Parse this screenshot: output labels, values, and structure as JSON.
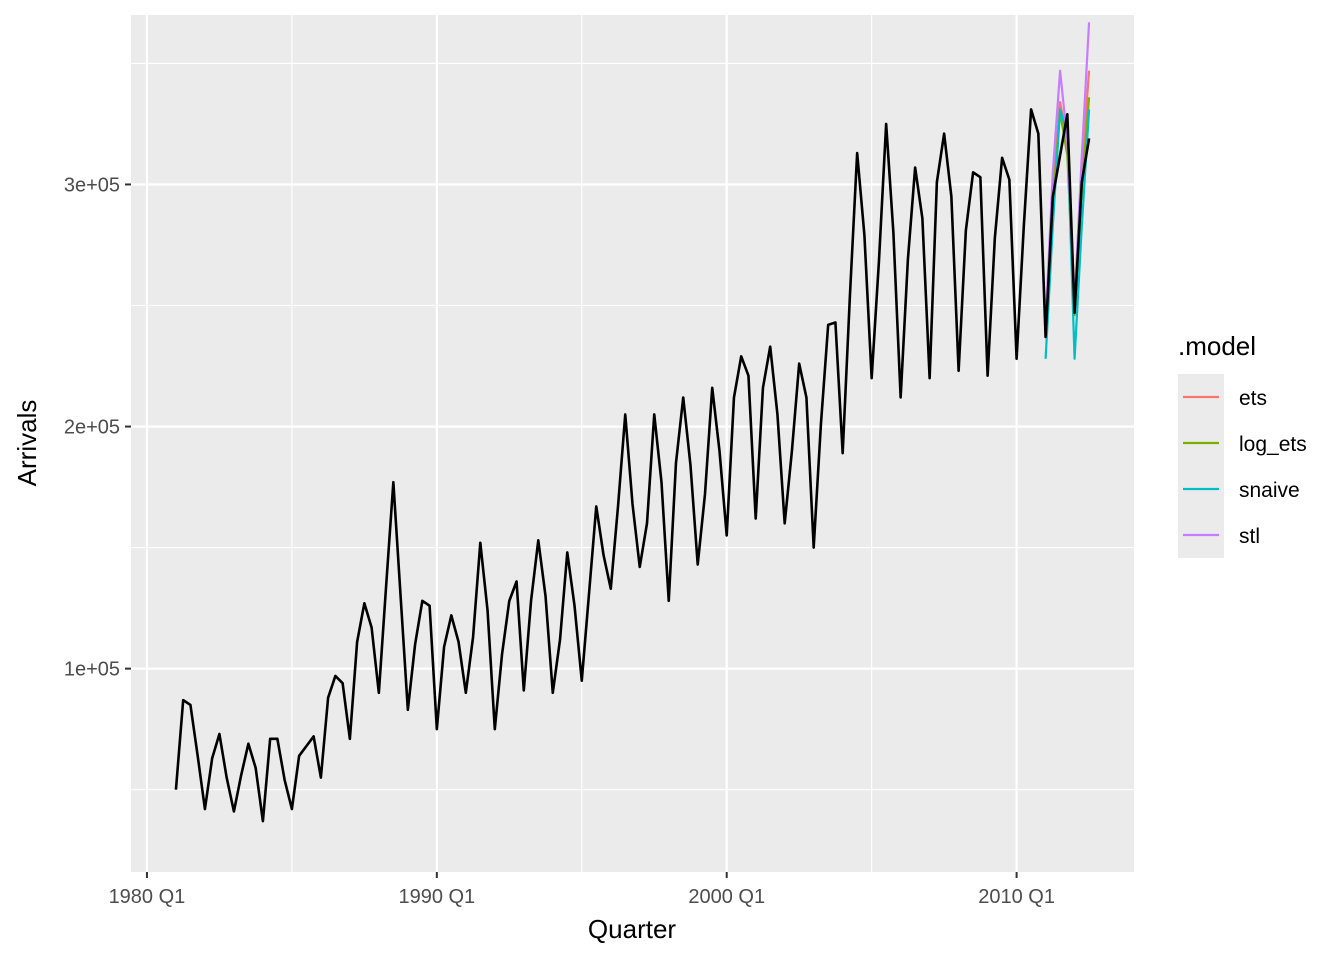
{
  "chart_data": {
    "type": "line",
    "title": "",
    "xlabel": "Quarter",
    "ylabel": "Arrivals",
    "x_start": "1981 Q1",
    "x_ticks": [
      {
        "label": "1980 Q1",
        "value": 1980.0
      },
      {
        "label": "1990 Q1",
        "value": 1990.0
      },
      {
        "label": "2000 Q1",
        "value": 2000.0
      },
      {
        "label": "2010 Q1",
        "value": 2010.0
      }
    ],
    "y_ticks": [
      {
        "label": "1e+05",
        "value": 100000
      },
      {
        "label": "2e+05",
        "value": 200000
      },
      {
        "label": "3e+05",
        "value": 300000
      }
    ],
    "xlim": [
      1979.45,
      2014.05
    ],
    "ylim": [
      16000,
      370000
    ],
    "grid": true,
    "legend": {
      "title": ".model",
      "placement": "right"
    },
    "series": [
      {
        "name": "",
        "color": "#000000",
        "values": [
          50000,
          87000,
          85000,
          64000,
          42000,
          63000,
          73000,
          55000,
          41000,
          56000,
          69000,
          59000,
          37000,
          71000,
          71000,
          54000,
          42000,
          64000,
          68000,
          72000,
          55000,
          88000,
          97000,
          94000,
          71000,
          111000,
          127000,
          117000,
          90000,
          134000,
          177000,
          130000,
          83000,
          110000,
          128000,
          126000,
          75000,
          109000,
          122000,
          111000,
          90000,
          113000,
          152000,
          124000,
          75000,
          106000,
          128000,
          136000,
          91000,
          128000,
          153000,
          130000,
          90000,
          112000,
          148000,
          126000,
          95000,
          131000,
          167000,
          147000,
          133000,
          167000,
          205000,
          168000,
          142000,
          160000,
          205000,
          177000,
          128000,
          185000,
          212000,
          184000,
          143000,
          172000,
          216000,
          190000,
          155000,
          212000,
          229000,
          221000,
          162000,
          216000,
          233000,
          205000,
          160000,
          190000,
          226000,
          212000,
          150000,
          201000,
          242000,
          243000,
          189000,
          254000,
          313000,
          279000,
          220000,
          268000,
          325000,
          280000,
          212000,
          269000,
          307000,
          286000,
          220000,
          301000,
          321000,
          295000,
          223000,
          281000,
          305000,
          303000,
          221000,
          278000,
          311000,
          302000,
          228000,
          283000,
          331000,
          321000,
          237000,
          295000,
          312000,
          329000,
          247000,
          301000,
          319000
        ]
      },
      {
        "name": "ets",
        "color": "#F8766D",
        "values_x_start": "2011 Q1",
        "values": [
          240000,
          298000,
          334000,
          318000,
          250000,
          306000,
          347000
        ]
      },
      {
        "name": "log_ets",
        "color": "#7CAE00",
        "values_x_start": "2011 Q1",
        "values": [
          238000,
          293000,
          330000,
          312000,
          246000,
          298000,
          336000
        ]
      },
      {
        "name": "snaive",
        "color": "#00BFC4",
        "values_x_start": "2011 Q1",
        "values": [
          228000,
          283000,
          331000,
          321000,
          228000,
          283000,
          331000
        ]
      },
      {
        "name": "stl",
        "color": "#C77CFF",
        "values_x_start": "2011 Q1",
        "values": [
          243000,
          305000,
          347000,
          318000,
          251000,
          312000,
          367000
        ]
      }
    ]
  }
}
